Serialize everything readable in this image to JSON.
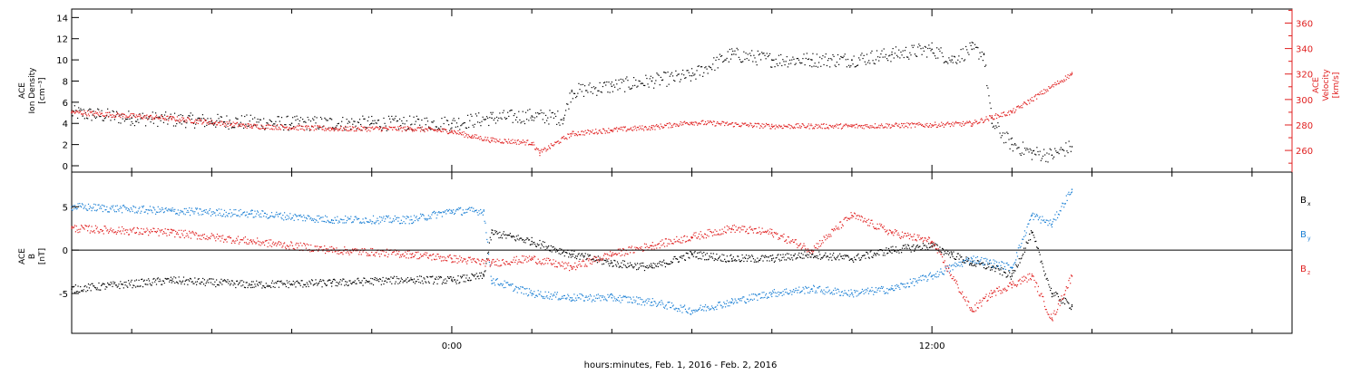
{
  "x_axis": {
    "label": "hours:minutes, Feb.  1, 2016 - Feb.  2, 2016",
    "range_hours": [
      -9.5,
      21.0
    ],
    "tick_labels": [
      {
        "hours": 0,
        "label": "0:00"
      },
      {
        "hours": 12,
        "label": "12:00"
      }
    ],
    "minor_tick_step_hours": 2
  },
  "panels": [
    {
      "id": "density-velocity",
      "left_axis": {
        "label_lines": [
          "ACE",
          "Ion Density",
          "[cm⁻³]"
        ],
        "color": "#000000",
        "range": [
          -0.6,
          14.8
        ],
        "ticks": [
          0,
          2,
          4,
          6,
          8,
          10,
          12,
          14
        ]
      },
      "right_axis": {
        "label_lines": [
          "ACE",
          "Velocity",
          "[km/s]"
        ],
        "color": "#e02020",
        "range": [
          243,
          371
        ],
        "ticks": [
          260,
          280,
          300,
          320,
          340,
          360
        ]
      }
    },
    {
      "id": "magnetic-field",
      "left_axis": {
        "label_lines": [
          "ACE",
          "B",
          "[nT]"
        ],
        "color": "#000000",
        "range": [
          -9.6,
          9.0
        ],
        "ticks": [
          -5,
          0,
          5
        ]
      },
      "zero_line": true,
      "legend": [
        {
          "main": "B",
          "sub": "x",
          "color": "#000000"
        },
        {
          "main": "B",
          "sub": "y",
          "color": "#1a7fd4"
        },
        {
          "main": "B",
          "sub": "z",
          "color": "#e02020"
        }
      ]
    }
  ],
  "chart_data": [
    {
      "type": "scatter",
      "panel": "density-velocity",
      "xlabel": "hours:minutes, Feb.  1, 2016 - Feb.  2, 2016",
      "ylabel": "ACE Ion Density [cm⁻³]",
      "y2label": "ACE Velocity [km/s]",
      "ylim": [
        -0.6,
        14.8
      ],
      "y2lim": [
        243,
        371
      ],
      "series": [
        {
          "name": "Ion Density",
          "axis": "left",
          "color": "#000000",
          "x": [
            -9.5,
            -8,
            -6,
            -4,
            -2,
            0,
            1,
            2,
            2.8,
            3,
            4,
            5,
            6,
            7,
            8,
            9,
            10,
            11,
            12,
            12.5,
            13,
            13.3,
            13.5,
            14,
            14.5,
            15,
            15.5
          ],
          "y": [
            5,
            4.5,
            4.2,
            4,
            4,
            4,
            4.5,
            4.7,
            4.5,
            7,
            7.5,
            8,
            8.5,
            10.5,
            10,
            10,
            10,
            10.5,
            11,
            10,
            11,
            10.5,
            4,
            2,
            1.2,
            1,
            1.8
          ]
        },
        {
          "name": "Velocity",
          "axis": "right",
          "color": "#e02020",
          "x": [
            -9.5,
            -7,
            -5,
            -3,
            -1,
            0,
            0.5,
            1,
            2,
            2.2,
            3,
            4,
            5,
            6,
            8,
            10,
            12,
            13,
            13.5,
            14,
            15.5
          ],
          "y": [
            290,
            285,
            279,
            277,
            277,
            275,
            271,
            268,
            266,
            258,
            273,
            276,
            278,
            282,
            279,
            279,
            280,
            281,
            286,
            290,
            320
          ]
        }
      ]
    },
    {
      "type": "scatter",
      "panel": "magnetic-field",
      "xlabel": "hours:minutes, Feb.  1, 2016 - Feb.  2, 2016",
      "ylabel": "ACE B [nT]",
      "ylim": [
        -9.6,
        9.0
      ],
      "series": [
        {
          "name": "Bx",
          "color": "#000000",
          "x": [
            -9.5,
            -7,
            -5,
            -3,
            -1,
            0,
            0.8,
            1,
            1.5,
            2,
            3,
            4,
            5,
            6,
            7,
            8,
            9,
            10,
            11,
            12,
            12.5,
            13,
            13.5,
            14,
            14.5,
            15,
            15.5
          ],
          "y": [
            -4.5,
            -3.5,
            -4,
            -3.8,
            -3.4,
            -3.5,
            -3,
            2,
            1.5,
            1,
            -0.5,
            -1.5,
            -2,
            -0.5,
            -1,
            -1,
            -0.5,
            -1,
            0,
            0.5,
            -0.5,
            -1.5,
            -2,
            -3,
            2,
            -5,
            -6.5
          ]
        },
        {
          "name": "By",
          "color": "#1a7fd4",
          "x": [
            -9.5,
            -7,
            -5,
            -3,
            -1,
            0,
            0.8,
            1,
            2,
            3,
            4,
            5,
            6,
            7,
            8,
            9,
            10,
            11,
            12,
            13,
            14,
            14.5,
            15,
            15.5
          ],
          "y": [
            5,
            4.5,
            4.2,
            3.5,
            3.5,
            4.5,
            4.5,
            -3.5,
            -5,
            -5.5,
            -5.5,
            -6,
            -7,
            -6,
            -5,
            -4.5,
            -5,
            -4.5,
            -3,
            -1,
            -2,
            4,
            3,
            7
          ]
        },
        {
          "name": "Bz",
          "color": "#e02020",
          "x": [
            -9.5,
            -7,
            -5,
            -3,
            -1,
            0,
            1,
            2,
            3,
            4,
            5,
            6,
            7,
            8,
            9,
            10,
            11,
            12,
            13,
            13.5,
            14,
            14.5,
            15,
            15.5
          ],
          "y": [
            2.5,
            2,
            1,
            0,
            -0.5,
            -1,
            -1.5,
            -1,
            -2,
            -0.5,
            0.5,
            1.5,
            2.5,
            2,
            0,
            4,
            2,
            1,
            -7,
            -5,
            -4,
            -3,
            -8,
            -3
          ]
        }
      ]
    }
  ]
}
